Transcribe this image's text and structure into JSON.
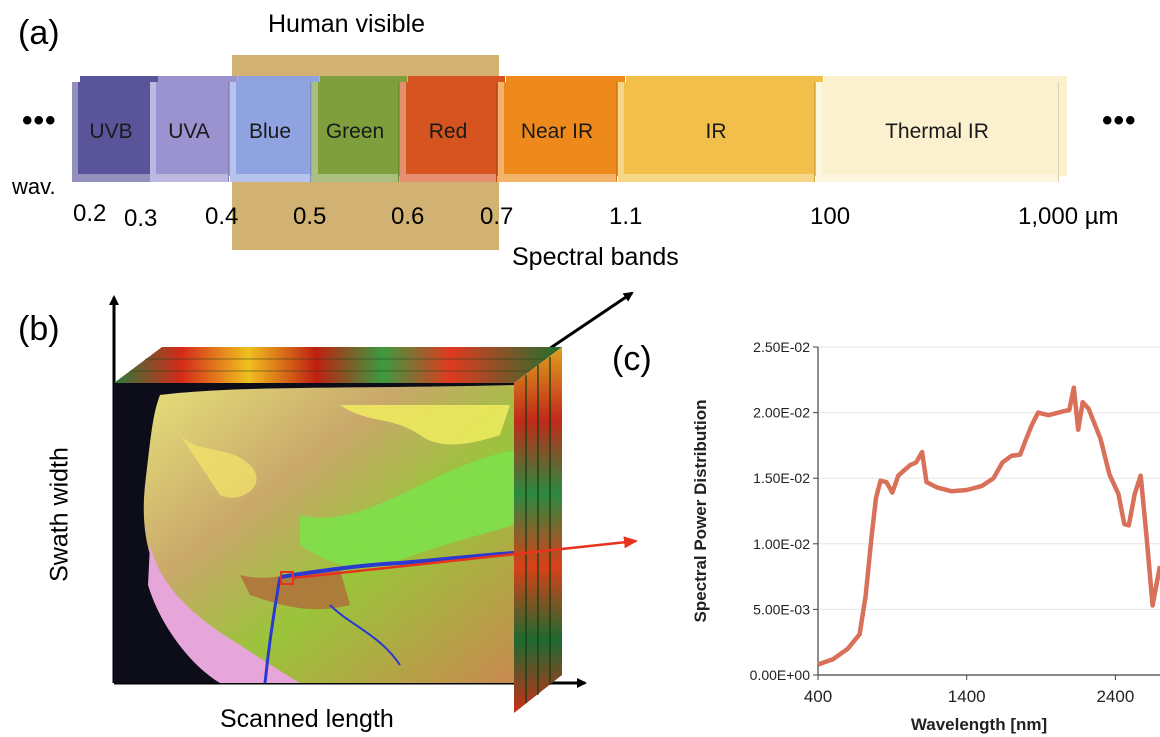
{
  "panel_a": {
    "label": "(a)",
    "human_visible": "Human visible",
    "ellipsis_left": "•••",
    "ellipsis_right": "•••",
    "wav_label": "wav.",
    "spectral_bands_label": "Spectral bands",
    "bands": [
      {
        "label": "UVB",
        "color": "#5a559a"
      },
      {
        "label": "UVA",
        "color": "#9a93cf"
      },
      {
        "label": "Blue",
        "color": "#8fa3e0"
      },
      {
        "label": "Green",
        "color": "#7f9f3c"
      },
      {
        "label": "Red",
        "color": "#d65420"
      },
      {
        "label": "Near IR",
        "color": "#ee8a1c"
      },
      {
        "label": "IR",
        "color": "#f2c04a"
      },
      {
        "label": "Thermal IR",
        "color": "#fbf1cf"
      }
    ],
    "ticks": [
      "0.2",
      "0.3",
      "0.4",
      "0.5",
      "0.6",
      "0.7",
      "1.1",
      "100",
      "1,000 µm"
    ],
    "highlight_color": "#c9a55a"
  },
  "panel_b": {
    "label": "(b)",
    "y_axis_label": "Swath width",
    "x_axis_label": "Scanned length"
  },
  "panel_c": {
    "label": "(c)"
  },
  "chart_data": {
    "type": "line",
    "title": "",
    "xlabel": "Wavelength [nm]",
    "ylabel": "Spectral Power Distribution",
    "xlim": [
      400,
      2700
    ],
    "ylim": [
      0,
      0.025
    ],
    "x_ticks": [
      "400",
      "1400",
      "2400"
    ],
    "y_ticks": [
      "0.00E+00",
      "5.00E-03",
      "1.00E-02",
      "1.50E-02",
      "2.00E-02",
      "2.50E-02"
    ],
    "grid": true,
    "line_color": "#d9705a",
    "series": [
      {
        "x": [
          400,
          500,
          600,
          680,
          720,
          760,
          790,
          820,
          860,
          900,
          940,
          980,
          1020,
          1060,
          1100,
          1130,
          1200,
          1300,
          1400,
          1500,
          1580,
          1640,
          1700,
          1760,
          1800,
          1840,
          1880,
          1950,
          2050,
          2090,
          2120,
          2150,
          2180,
          2220,
          2300,
          2360,
          2420,
          2460,
          2490,
          2530,
          2570,
          2610,
          2650,
          2670,
          2700
        ],
        "y": [
          0.0008,
          0.0012,
          0.002,
          0.0031,
          0.006,
          0.0105,
          0.0135,
          0.0148,
          0.0147,
          0.0139,
          0.0152,
          0.0156,
          0.016,
          0.0162,
          0.017,
          0.0147,
          0.0143,
          0.014,
          0.0141,
          0.0144,
          0.015,
          0.0162,
          0.0167,
          0.0168,
          0.018,
          0.0191,
          0.02,
          0.0198,
          0.0201,
          0.0202,
          0.0219,
          0.0187,
          0.0208,
          0.0203,
          0.018,
          0.0153,
          0.0138,
          0.0115,
          0.0114,
          0.0138,
          0.0152,
          0.0105,
          0.0053,
          0.0065,
          0.0083
        ]
      }
    ]
  }
}
